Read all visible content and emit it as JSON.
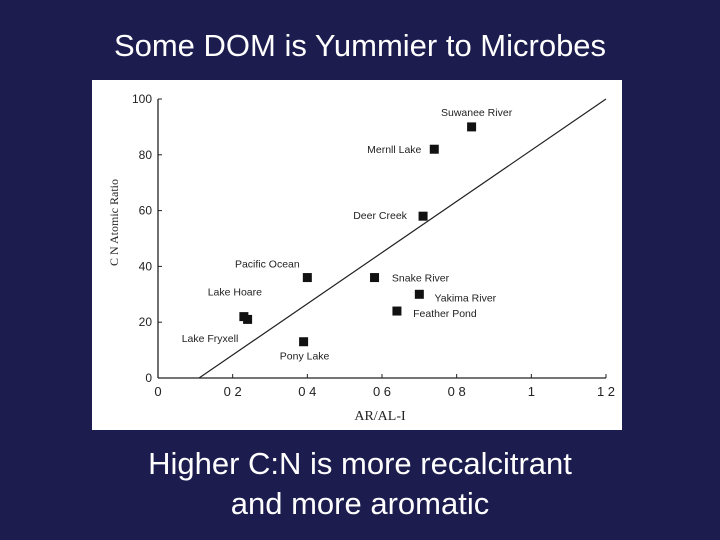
{
  "slide": {
    "title": "Some DOM is Yummier to Microbes",
    "caption_line1": "Higher C:N is more recalcitrant",
    "caption_line2": "and more aromatic"
  },
  "chart_data": {
    "type": "scatter",
    "xlabel": "AR/AL-I",
    "ylabel": "C N Atomic Ratio",
    "xlim": [
      0,
      1.2
    ],
    "ylim": [
      0,
      100
    ],
    "x_ticks": [
      "0",
      "0 2",
      "0 4",
      "0 6",
      "0 8",
      "1",
      "1 2"
    ],
    "x_tick_values": [
      0,
      0.2,
      0.4,
      0.6,
      0.8,
      1.0,
      1.2
    ],
    "y_ticks": [
      "0",
      "20",
      "40",
      "60",
      "80",
      "100"
    ],
    "y_tick_values": [
      0,
      20,
      40,
      60,
      80,
      100
    ],
    "grid": false,
    "marker": "square",
    "marker_color": "#111111",
    "points": [
      {
        "label": "Suwanee River",
        "x": 0.84,
        "y": 90
      },
      {
        "label": "Mernll Lake",
        "x": 0.74,
        "y": 82
      },
      {
        "label": "Deer Creek",
        "x": 0.71,
        "y": 58
      },
      {
        "label": "Pacific Ocean",
        "x": 0.4,
        "y": 36
      },
      {
        "label": "Snake River",
        "x": 0.58,
        "y": 36
      },
      {
        "label": "Yakima River",
        "x": 0.7,
        "y": 30
      },
      {
        "label": "Feather Pond",
        "x": 0.64,
        "y": 24
      },
      {
        "label": "Lake Hoare",
        "x": 0.23,
        "y": 22
      },
      {
        "label": "",
        "x": 0.24,
        "y": 21
      },
      {
        "label": "Lake Fryxell",
        "x": null,
        "y": null
      },
      {
        "label": "Pony Lake",
        "x": 0.39,
        "y": 13
      }
    ],
    "trendline": {
      "x0": 0.11,
      "y0": 0,
      "x1": 1.2,
      "y1": 100
    }
  }
}
